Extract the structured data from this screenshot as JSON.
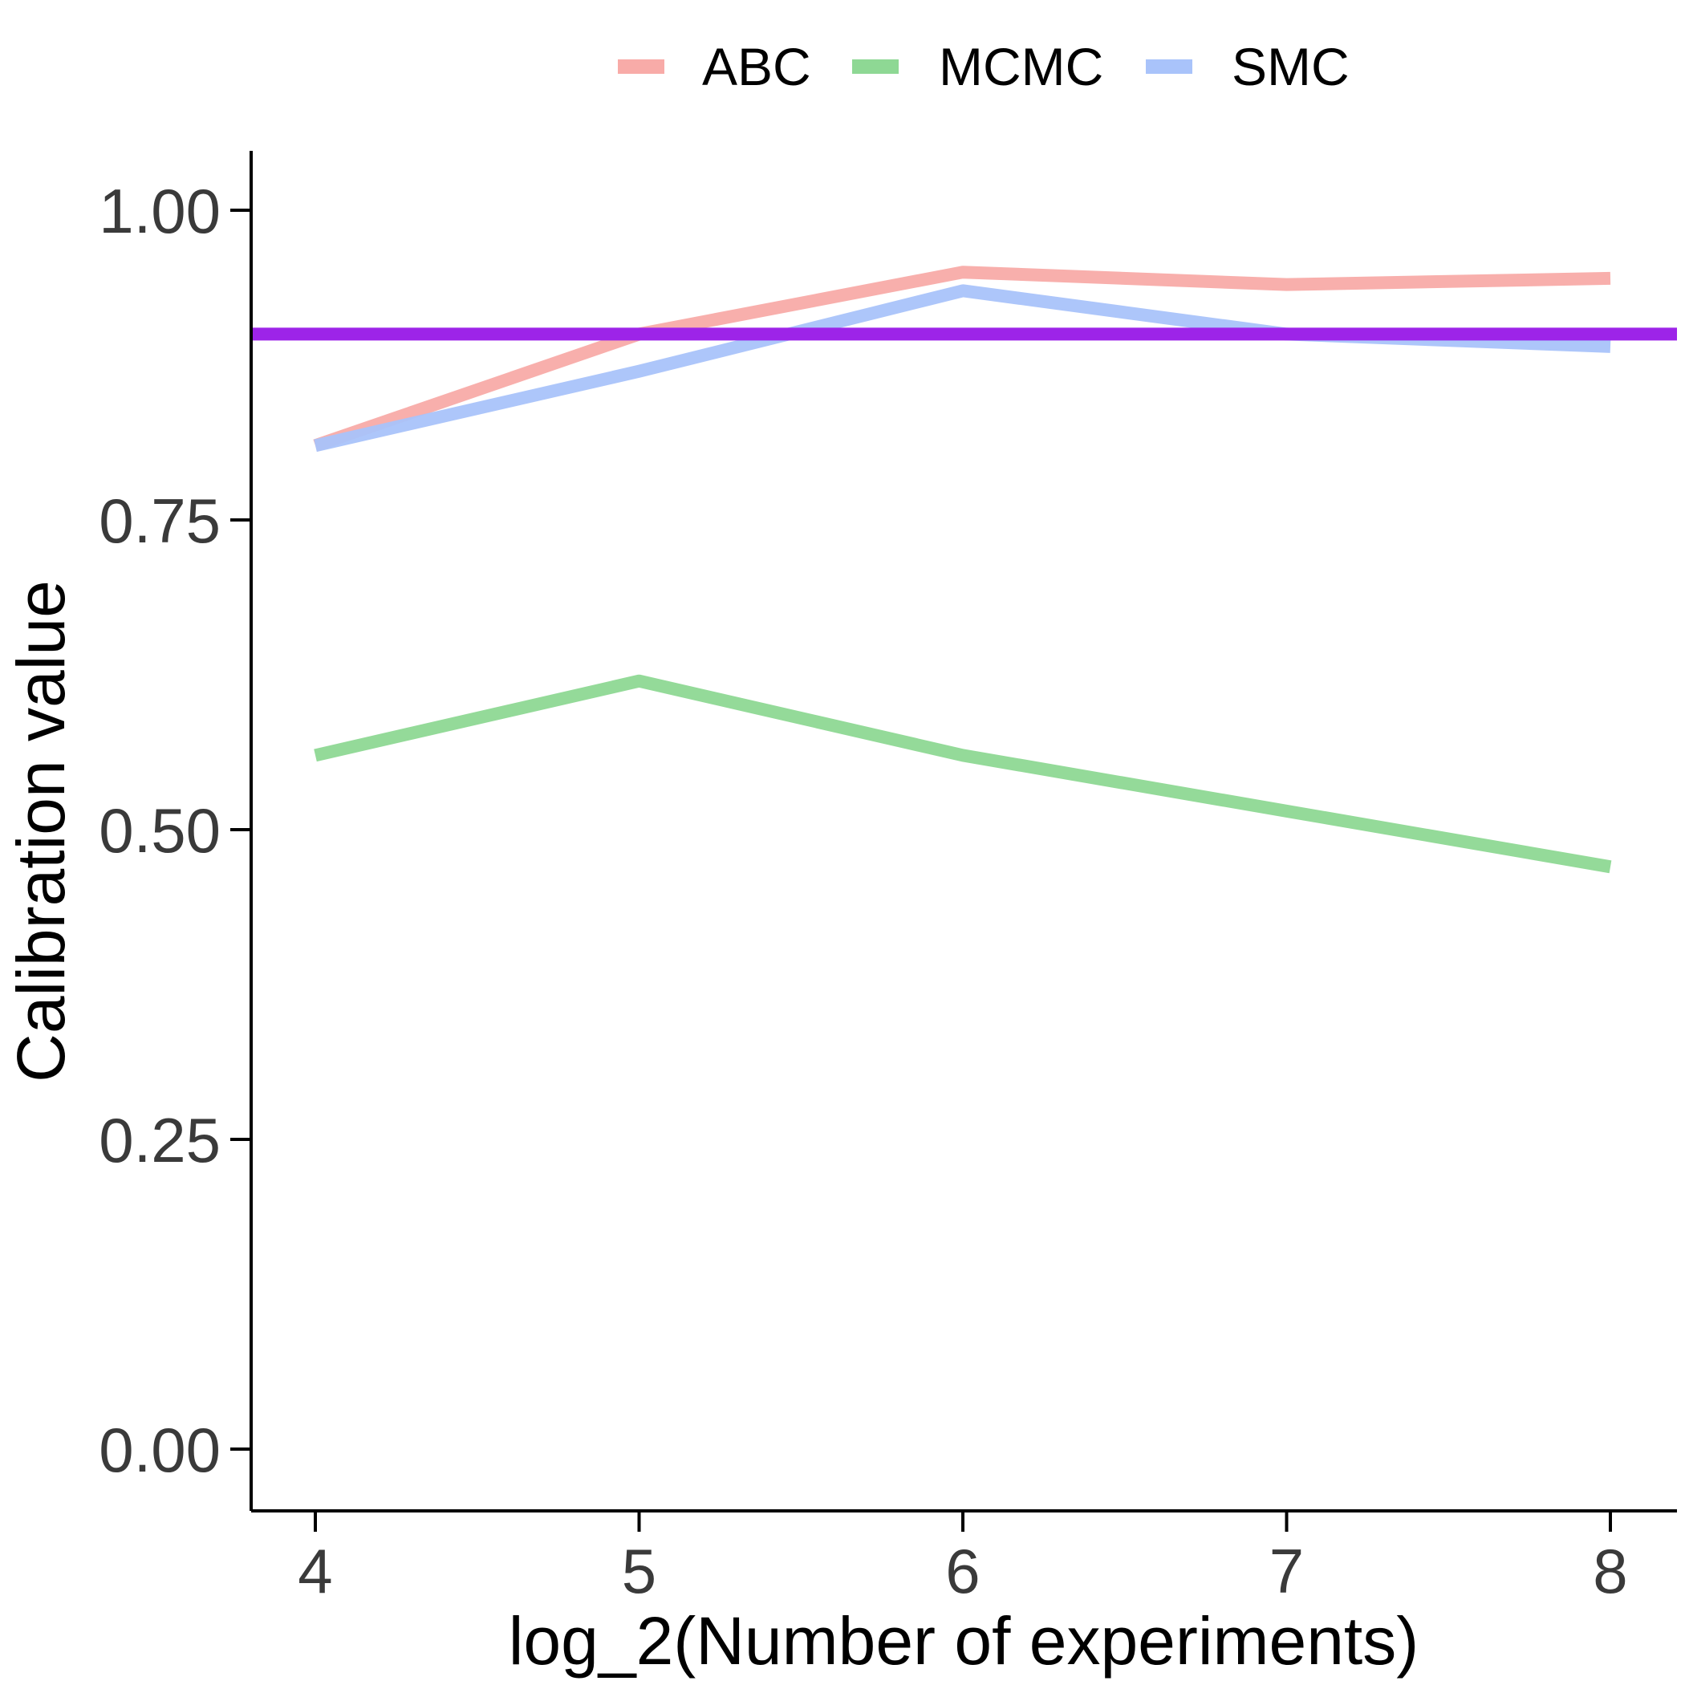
{
  "chart_data": {
    "type": "line",
    "title": "",
    "xlabel": "log_2(Number of experiments)",
    "ylabel": "Calibration value",
    "x": [
      4,
      5,
      6,
      7,
      8
    ],
    "xlim": [
      3.8,
      8.2
    ],
    "ylim": [
      -0.05,
      1.05
    ],
    "x_ticks": [
      "4",
      "5",
      "6",
      "7",
      "8"
    ],
    "y_ticks": [
      "0.00",
      "0.25",
      "0.50",
      "0.75",
      "1.00"
    ],
    "grid": false,
    "legend_position": "top",
    "series": [
      {
        "name": "ABC",
        "color": "#f8aba8",
        "values": [
          0.81,
          0.9,
          0.95,
          0.94,
          0.945
        ]
      },
      {
        "name": "MCMC",
        "color": "#8ed894",
        "values": [
          0.56,
          0.62,
          0.56,
          0.515,
          0.47
        ]
      },
      {
        "name": "SMC",
        "color": "#a9c3fa",
        "values": [
          0.81,
          0.87,
          0.935,
          0.9,
          0.89
        ]
      }
    ],
    "reference_line": {
      "y": 0.9,
      "color": "#9d24e8"
    }
  }
}
